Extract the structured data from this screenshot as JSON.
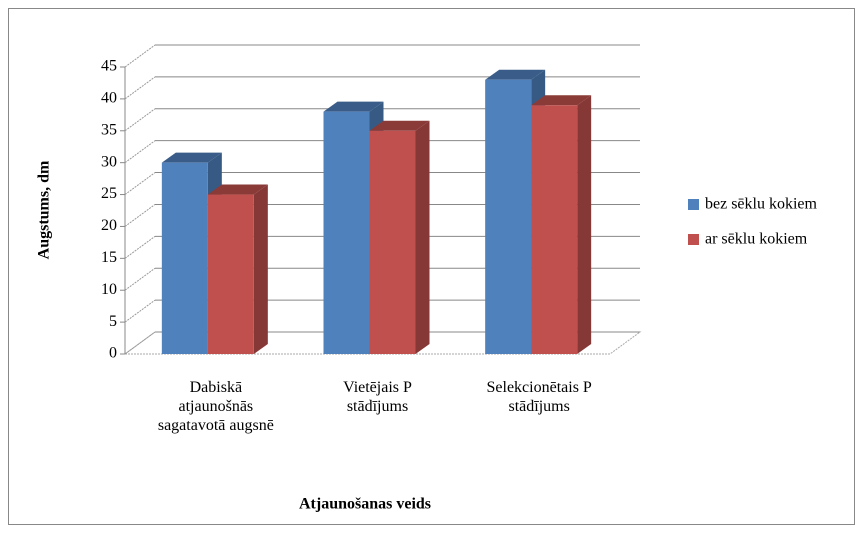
{
  "chart_data": {
    "type": "bar3d",
    "x_label": "Atjaunošanas veids",
    "y_label": "Augstums, dm",
    "categories": [
      "Dabiskā atjaunošnās sagatavotā augsnē",
      "Vietējais P stādījums",
      "Selekcionētais P stādījums"
    ],
    "series": [
      {
        "name": "bez sēklu kokiem",
        "color": "#4f81bd",
        "values": [
          30,
          38,
          43
        ]
      },
      {
        "name": "ar sēklu kokiem",
        "color": "#c0504d",
        "values": [
          25,
          35,
          39
        ]
      }
    ],
    "ylim": [
      0,
      45
    ],
    "yticks": [
      0,
      5,
      10,
      15,
      20,
      25,
      30,
      35,
      40,
      45
    ],
    "grid": true,
    "legend": "right"
  }
}
